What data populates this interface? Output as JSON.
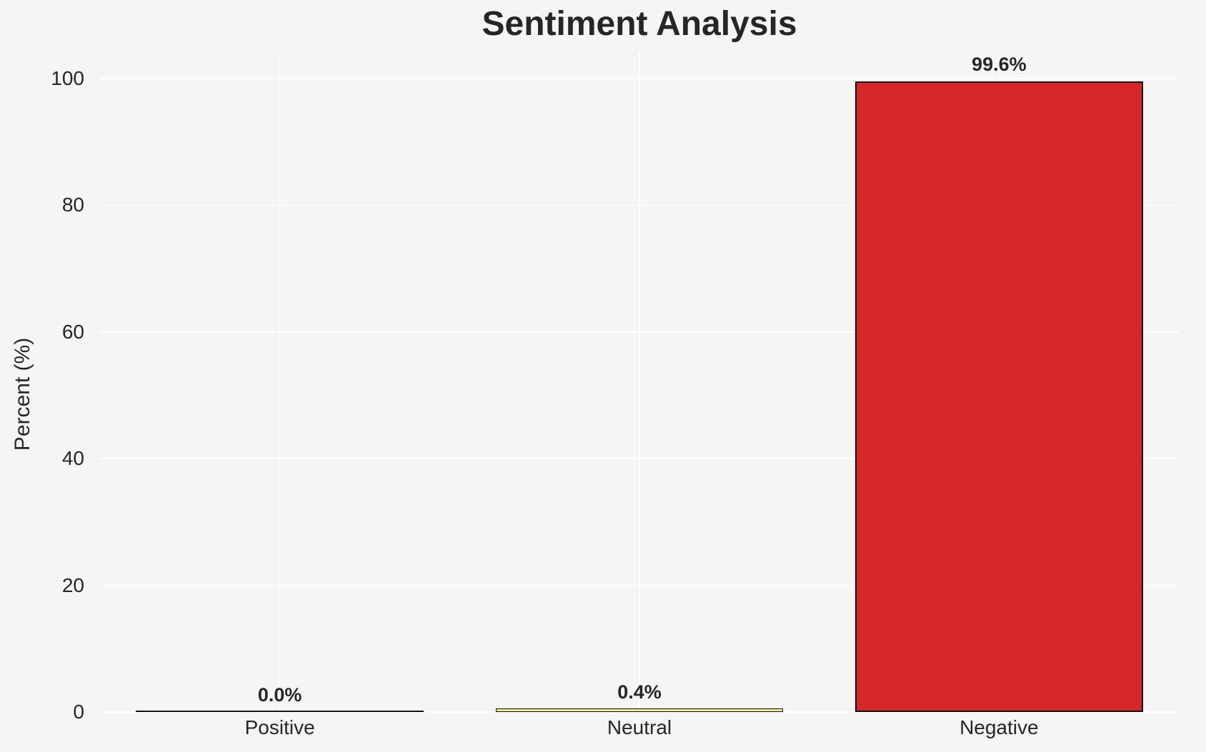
{
  "chart_data": {
    "type": "bar",
    "title": "Sentiment Analysis",
    "ylabel": "Percent (%)",
    "xlabel": "",
    "categories": [
      "Positive",
      "Neutral",
      "Negative"
    ],
    "values": [
      0.0,
      0.4,
      99.6
    ],
    "value_labels": [
      "0.0%",
      "0.4%",
      "99.6%"
    ],
    "bar_colors": [
      "none",
      "#f0e68c",
      "#d62728"
    ],
    "bar_edge_color": "#111111",
    "yticks": [
      0,
      20,
      40,
      60,
      80,
      100
    ],
    "ylim": [
      0,
      104
    ],
    "grid": true,
    "grid_color": "#ffffff",
    "background_color": "#f5f5f5",
    "text_color": "#262626",
    "legend_position": "none"
  }
}
